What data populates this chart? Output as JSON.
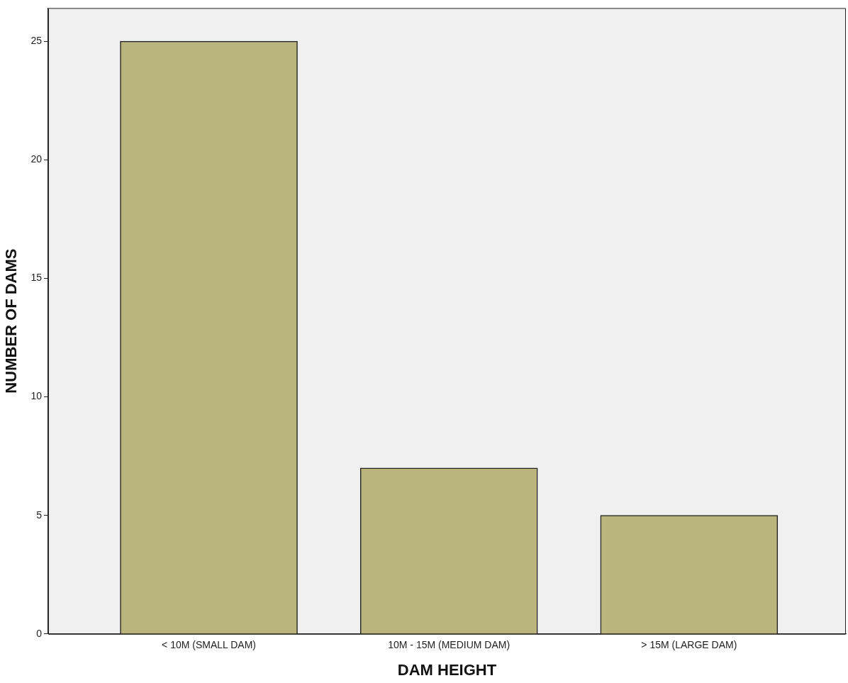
{
  "chart_data": {
    "type": "bar",
    "xlabel": "DAM HEIGHT",
    "ylabel": "NUMBER OF DAMS",
    "categories": [
      "< 10M (SMALL DAM)",
      "10M - 15M (MEDIUM DAM)",
      "> 15M (LARGE DAM)"
    ],
    "values": [
      25,
      7,
      5
    ],
    "color": "#b9b57c",
    "ylim": [
      0,
      26.4
    ],
    "yticks": [
      0,
      5,
      10,
      15,
      20,
      25
    ],
    "grid": false,
    "legend": false
  }
}
